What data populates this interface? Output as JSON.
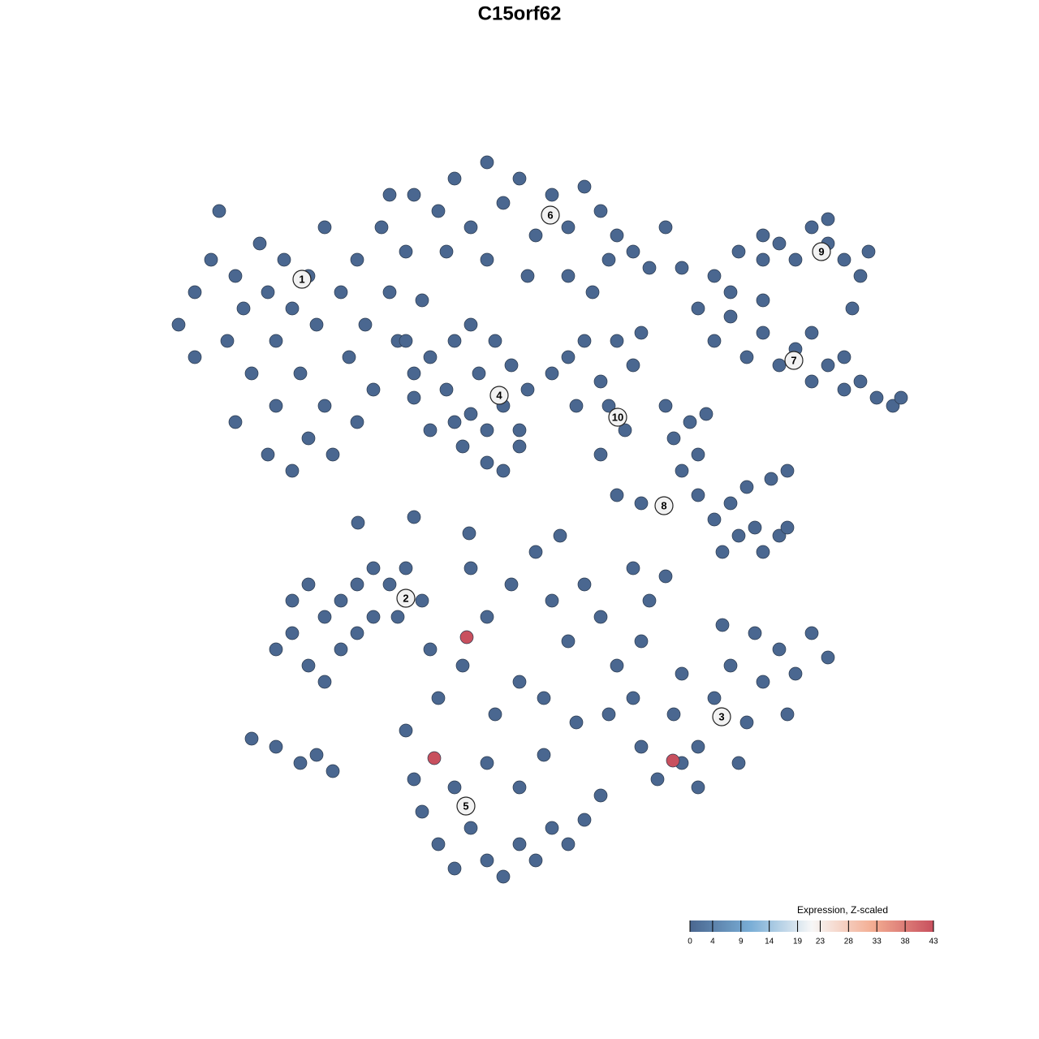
{
  "chart_data": {
    "type": "scatter",
    "title": "C15orf62",
    "xlim": [
      -44,
      49
    ],
    "ylim": [
      -45.5,
      45.5
    ],
    "x": [
      -42,
      -40,
      -38,
      -36,
      -35,
      -34,
      -33,
      -32,
      -31,
      -30,
      -30,
      -29,
      -28,
      -27,
      -26,
      -26,
      -25,
      -24,
      -24,
      -23,
      -22,
      -21,
      -20,
      -19,
      -18,
      -17,
      -16,
      -15,
      -14,
      -12,
      -28,
      -31,
      -35,
      -40,
      -37,
      -20,
      -13,
      -10,
      -8,
      -6,
      -4,
      -2,
      0,
      2,
      4,
      6,
      8,
      10,
      12,
      14,
      16,
      18,
      20,
      -4,
      1,
      6,
      9,
      11,
      -9,
      -13,
      -16,
      -13,
      -11,
      -11,
      -9,
      -8,
      -7,
      -6,
      -5,
      -4,
      -3,
      -2,
      -1,
      0,
      1,
      -8,
      -4,
      -2,
      0,
      -14,
      -6,
      4,
      6,
      8,
      10,
      12,
      14,
      11,
      13,
      10,
      15,
      7,
      22,
      24,
      26,
      28,
      30,
      32,
      34,
      36,
      38,
      40,
      42,
      44,
      46,
      47,
      36,
      40,
      30,
      26,
      24,
      27,
      30,
      32,
      34,
      36,
      38,
      40,
      42,
      38,
      41,
      43,
      30,
      19,
      20,
      21,
      22,
      22,
      24,
      26,
      27,
      29,
      30,
      32,
      33,
      28,
      31,
      33,
      25,
      18,
      23,
      15,
      12,
      -30,
      -28,
      -26,
      -24,
      -22,
      -20,
      -18,
      -16,
      -14,
      -12,
      -28,
      -24,
      -22,
      -20,
      -26,
      -33,
      -30,
      -27,
      -25,
      -23,
      -18,
      -15,
      -14,
      -13,
      -12,
      -10,
      -8,
      -6,
      -4,
      -2,
      0,
      2,
      4,
      6,
      8,
      10,
      -8,
      -4,
      0,
      3,
      -10,
      -7,
      -4,
      -1,
      2,
      4,
      6,
      8,
      10,
      12,
      14,
      16,
      0,
      -3,
      3,
      7,
      11,
      -11,
      -6,
      5,
      15,
      18,
      14,
      15,
      17,
      19,
      20,
      22,
      24,
      26,
      28,
      30,
      32,
      34,
      36,
      38,
      25,
      29,
      22,
      27,
      33,
      20,
      -19.9,
      -13,
      -6.2,
      -6.5,
      -10.5,
      18.9
    ],
    "y": [
      24,
      28,
      32,
      22,
      30,
      26,
      18,
      34,
      28,
      22,
      14,
      32,
      26,
      18,
      10,
      30,
      24,
      36,
      14,
      8,
      28,
      20,
      32,
      24,
      16,
      36,
      28,
      22,
      33,
      27,
      6,
      8,
      12,
      20,
      38,
      12,
      18,
      38,
      42,
      36,
      44,
      39,
      42,
      35,
      40,
      36,
      41,
      38,
      35,
      33,
      31,
      36,
      31,
      32,
      30,
      30,
      28,
      32,
      33,
      40,
      40,
      15,
      20,
      11,
      16,
      22,
      9,
      13,
      18,
      7,
      22,
      14,
      19,
      11,
      16,
      12,
      11,
      6,
      9,
      22,
      24,
      18,
      20,
      22,
      17,
      22,
      19,
      14,
      11,
      8,
      23,
      14,
      26,
      22,
      25,
      20,
      23,
      19,
      21,
      17,
      19,
      16,
      17,
      15,
      14,
      15,
      23,
      20,
      27,
      28,
      30,
      33,
      32,
      34,
      32,
      36,
      34,
      32,
      30,
      37,
      26,
      33,
      35,
      10,
      6,
      12,
      3,
      8,
      0,
      2,
      -2,
      -1,
      -4,
      -2,
      -1,
      4,
      5,
      6,
      -4,
      14,
      13,
      2,
      3,
      -16,
      -14,
      -18,
      -12,
      -10,
      -8,
      -12,
      -8,
      -6,
      -10,
      -10,
      -20,
      -16,
      -14,
      -8,
      -27,
      -28,
      -30,
      -29,
      -31,
      -6,
      -12,
      -26,
      -32,
      -36,
      -40,
      -43,
      -38,
      -42,
      -44,
      -40,
      -42,
      -38,
      -40,
      -37,
      -34,
      -33,
      -30,
      -33,
      -29,
      -22,
      -18,
      -12,
      -8,
      -4,
      -10,
      -15,
      -8,
      -12,
      -18,
      -6,
      -10,
      -20,
      -24,
      -22,
      -25,
      -24,
      -16,
      -6,
      -2,
      -15,
      -7,
      -22,
      -28,
      -32,
      -24,
      -19,
      -28,
      -22,
      -18,
      -25,
      -20,
      -16,
      -19,
      -14,
      -17,
      -13,
      -14,
      -33,
      -30,
      -24,
      -30,
      -0.4,
      0.3,
      -1.7,
      -14.5,
      -29.4,
      -29.7
    ],
    "values": [
      0,
      0,
      0,
      0,
      0,
      0,
      0,
      0,
      0,
      0,
      0,
      0,
      0,
      0,
      0,
      0,
      0,
      0,
      0,
      0,
      0,
      0,
      0,
      0,
      0,
      0,
      0,
      0,
      0,
      0,
      0,
      0,
      0,
      0,
      0,
      0,
      0,
      0,
      0,
      0,
      0,
      0,
      0,
      0,
      0,
      0,
      0,
      0,
      0,
      0,
      0,
      0,
      0,
      0,
      0,
      0,
      0,
      0,
      0,
      0,
      0,
      0,
      0,
      0,
      0,
      0,
      0,
      0,
      0,
      0,
      0,
      0,
      0,
      0,
      0,
      0,
      0,
      0,
      0,
      0,
      0,
      0,
      0,
      0,
      0,
      0,
      0,
      0,
      0,
      0,
      0,
      0,
      0,
      0,
      0,
      0,
      0,
      0,
      0,
      0,
      0,
      0,
      0,
      0,
      0,
      0,
      0,
      0,
      0,
      0,
      0,
      0,
      0,
      0,
      0,
      0,
      0,
      0,
      0,
      0,
      0,
      0,
      0,
      0,
      0,
      0,
      0,
      0,
      0,
      0,
      0,
      0,
      0,
      0,
      0,
      0,
      0,
      0,
      0,
      0,
      0,
      0,
      0,
      0,
      0,
      0,
      0,
      0,
      0,
      0,
      0,
      0,
      0,
      0,
      0,
      0,
      0,
      0,
      0,
      0,
      0,
      0,
      0,
      0,
      0,
      0,
      0,
      0,
      0,
      0,
      0,
      0,
      0,
      0,
      0,
      0,
      0,
      0,
      0,
      0,
      0,
      0,
      0,
      0,
      0,
      0,
      0,
      0,
      0,
      0,
      0,
      0,
      0,
      0,
      0,
      0,
      0,
      0,
      0,
      0,
      0,
      0,
      0,
      0,
      0,
      0,
      0,
      0,
      0,
      0,
      0,
      0,
      0,
      0,
      0,
      0,
      0,
      0,
      0,
      0,
      0,
      0,
      0,
      0,
      0,
      0,
      0,
      0,
      43,
      43,
      43
    ],
    "cluster_labels": [
      {
        "text": "1",
        "x": -26.8,
        "y": 29.6
      },
      {
        "text": "2",
        "x": -14,
        "y": -9.7
      },
      {
        "text": "3",
        "x": 24.9,
        "y": -24.3
      },
      {
        "text": "4",
        "x": -2.5,
        "y": 15.3
      },
      {
        "text": "5",
        "x": -6.6,
        "y": -35.3
      },
      {
        "text": "6",
        "x": 3.8,
        "y": 37.5
      },
      {
        "text": "7",
        "x": 33.8,
        "y": 19.6
      },
      {
        "text": "8",
        "x": 17.8,
        "y": 1.7
      },
      {
        "text": "9",
        "x": 37.2,
        "y": 33
      },
      {
        "text": "10",
        "x": 12.1,
        "y": 12.6
      }
    ],
    "colorbar": {
      "title": "Expression, Z-scaled",
      "lim": [
        0,
        43
      ],
      "ticks": [
        0,
        4,
        9,
        14,
        19,
        23,
        28,
        33,
        38,
        43
      ],
      "colors": [
        "#4a6790",
        "#7aaed6",
        "#f7f7f7",
        "#f3ad92",
        "#c8505e"
      ]
    }
  }
}
